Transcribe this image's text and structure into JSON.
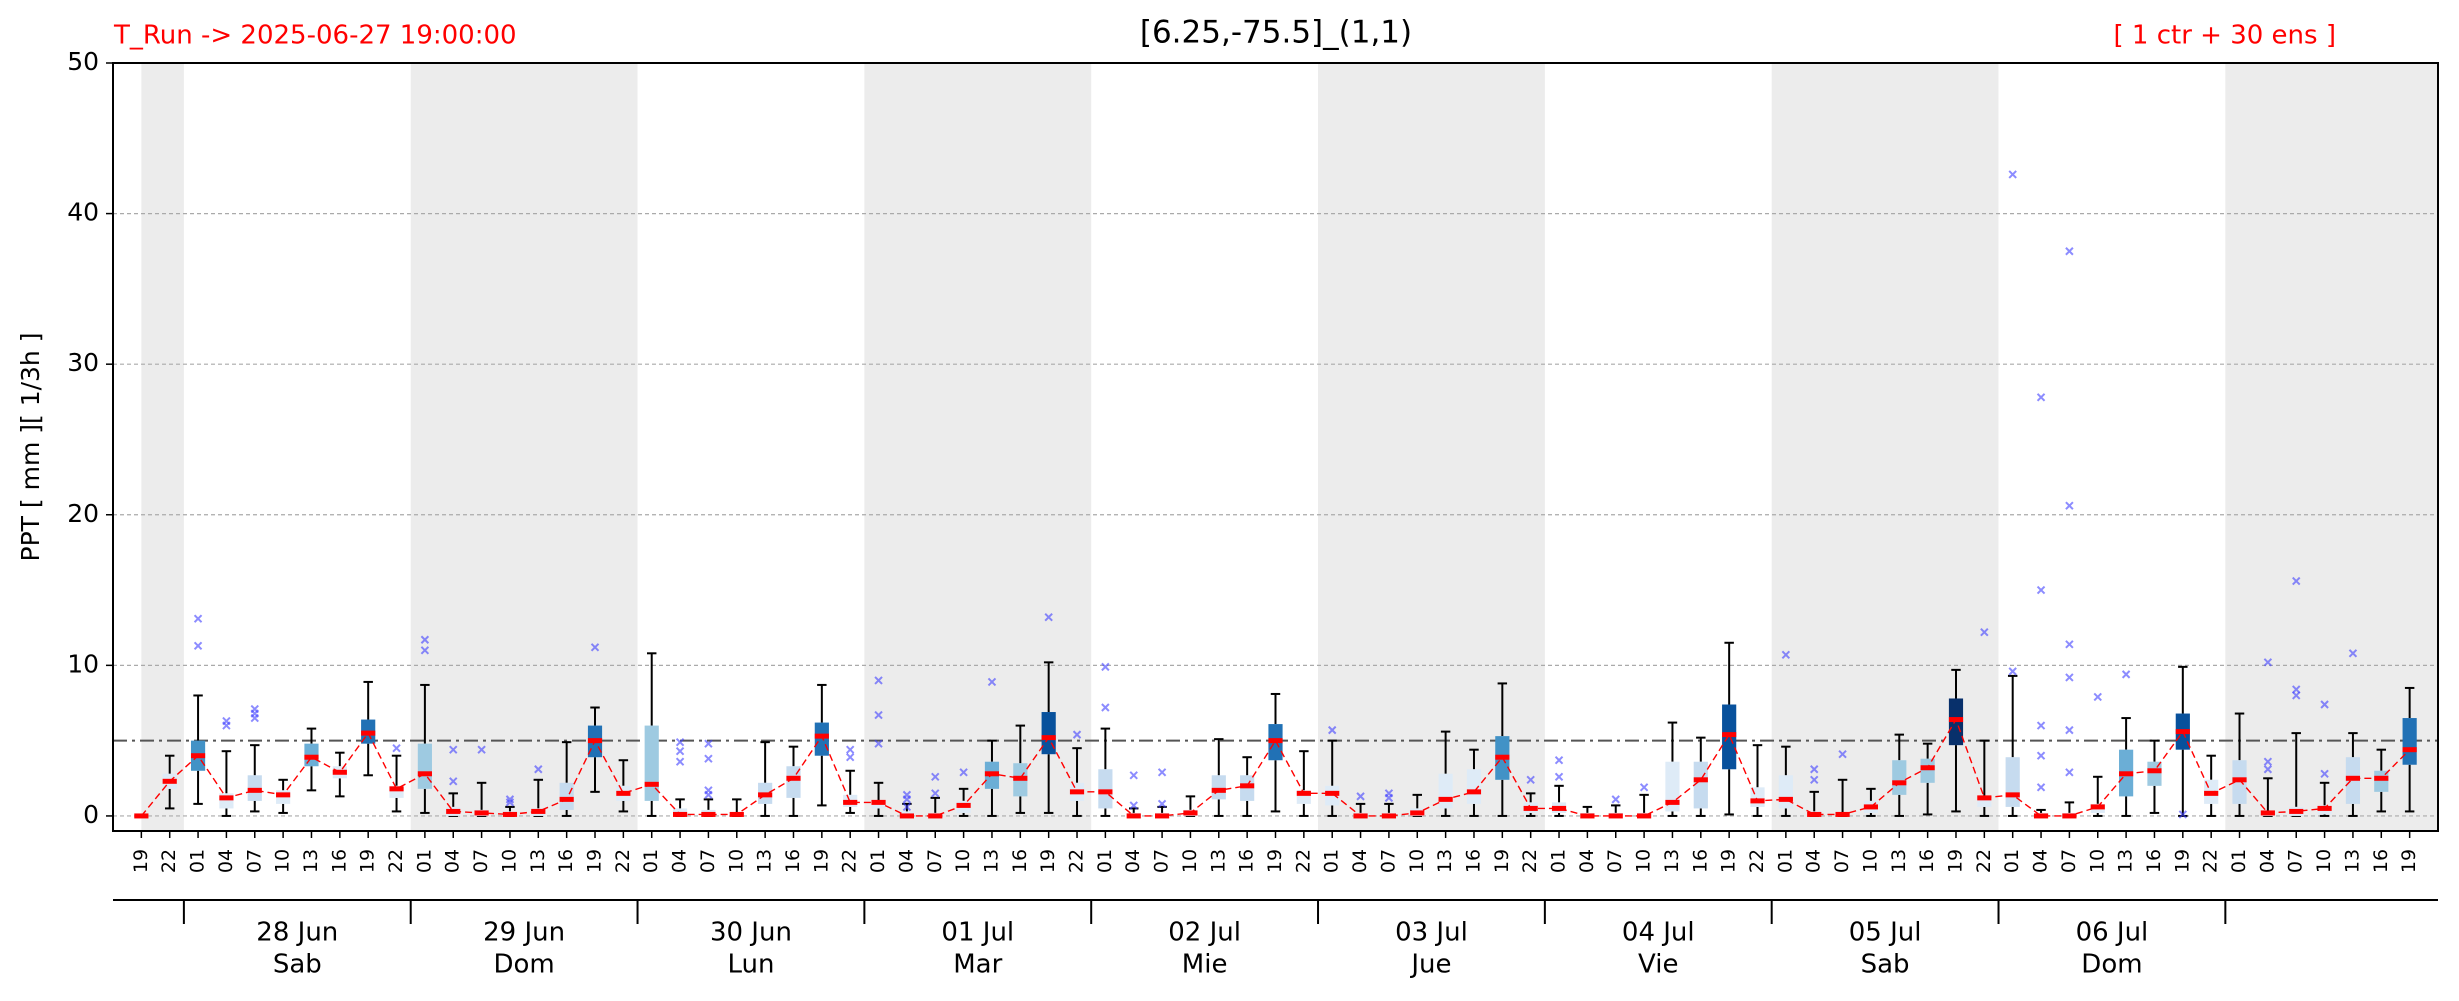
{
  "chart_data": {
    "type": "box",
    "title": "[6.25,-75.5]_(1,1)",
    "run_label": "T_Run -> 2025-06-27  19:00:00",
    "ensemble_label": "[ 1 ctr + 30 ens ]",
    "ylabel": "PPT  [ mm ][ 1/3h ]",
    "categories": [
      "19",
      "22",
      "01",
      "04",
      "07",
      "10",
      "13",
      "16",
      "19",
      "22",
      "01",
      "04",
      "07",
      "10",
      "13",
      "16",
      "19",
      "22",
      "01",
      "04",
      "07",
      "10",
      "13",
      "16",
      "19",
      "22",
      "01",
      "04",
      "07",
      "10",
      "13",
      "16",
      "19",
      "22",
      "01",
      "04",
      "07",
      "10",
      "13",
      "16",
      "19",
      "22",
      "01",
      "04",
      "07",
      "10",
      "13",
      "16",
      "19",
      "22",
      "01",
      "04",
      "07",
      "10",
      "13",
      "16",
      "19",
      "22",
      "01",
      "04",
      "07",
      "10",
      "13",
      "16",
      "19",
      "22",
      "01",
      "04",
      "07",
      "10",
      "13",
      "16",
      "19",
      "22",
      "01",
      "04",
      "07",
      "10",
      "13",
      "16",
      "19"
    ],
    "day_labels": [
      null,
      "28 Jun",
      "29 Jun",
      "30 Jun",
      "01 Jul",
      "02 Jul",
      "03 Jul",
      "04 Jul",
      "05 Jul",
      "06 Jul",
      null
    ],
    "weekdays": [
      null,
      "Sab",
      "Dom",
      "Lun",
      "Mar",
      "Mie",
      "Jue",
      "Vie",
      "Sab",
      "Dom",
      null
    ],
    "whislo": [
      0,
      0.5,
      0.8,
      0,
      0.3,
      0.2,
      1.7,
      1.3,
      2.7,
      0.3,
      0.2,
      0,
      0,
      0,
      0,
      0,
      1.6,
      0.3,
      0,
      0,
      0,
      0,
      0,
      0,
      0.7,
      0.2,
      0,
      0,
      0,
      0,
      0,
      0.2,
      0.2,
      0,
      0,
      0,
      0,
      0,
      0,
      0,
      0.3,
      0,
      0,
      0,
      0,
      0,
      0,
      0,
      0,
      0,
      0,
      0,
      0,
      0,
      0,
      0,
      0.1,
      0,
      0,
      0,
      0,
      0,
      0,
      0.1,
      0.3,
      0,
      0,
      0,
      0,
      0,
      0,
      0.2,
      0,
      0,
      0,
      0,
      0,
      0,
      0,
      0.3,
      0.3
    ],
    "q1": [
      0,
      1.8,
      3,
      0.5,
      1,
      0.8,
      3.3,
      2.5,
      4.8,
      1.2,
      1.8,
      0,
      0,
      0,
      0,
      0.4,
      3.9,
      1,
      1,
      0,
      0,
      0,
      0.8,
      1.2,
      4,
      0.6,
      0.5,
      0,
      0,
      0.2,
      1.8,
      1.3,
      4.1,
      1,
      0.5,
      0,
      0,
      0,
      1.1,
      1,
      3.7,
      0.8,
      0.7,
      0,
      0,
      0,
      0.5,
      0.8,
      2.4,
      0.2,
      0.2,
      0,
      0,
      0,
      0.3,
      0.5,
      3.1,
      0.6,
      0.5,
      0,
      0,
      0.2,
      1.4,
      2.2,
      4.7,
      0.6,
      0.6,
      0,
      0,
      0.2,
      1.3,
      2,
      4.4,
      0.8,
      0.8,
      0,
      0,
      0.1,
      0.8,
      1.6,
      3.4
    ],
    "med": [
      0,
      2.3,
      4,
      1.2,
      1.7,
      1.4,
      3.9,
      2.9,
      5.5,
      1.8,
      2.8,
      0.3,
      0.2,
      0.1,
      0.3,
      1.1,
      5,
      1.5,
      2.1,
      0.1,
      0.1,
      0.1,
      1.4,
      2.5,
      5.3,
      0.9,
      0.9,
      0,
      0,
      0.7,
      2.8,
      2.5,
      5.2,
      1.6,
      1.6,
      0,
      0,
      0.2,
      1.7,
      2,
      5,
      1.5,
      1.5,
      0,
      0,
      0.2,
      1.1,
      1.6,
      3.9,
      0.5,
      0.5,
      0,
      0,
      0,
      0.9,
      2.4,
      5.4,
      1,
      1.1,
      0.1,
      0.1,
      0.6,
      2.2,
      3.2,
      6.4,
      1.2,
      1.4,
      0,
      0,
      0.6,
      2.8,
      3,
      5.6,
      1.5,
      2.4,
      0.2,
      0.3,
      0.5,
      2.5,
      2.5,
      4.4
    ],
    "q3": [
      0,
      2.8,
      5,
      1.5,
      2.7,
      1.7,
      4.8,
      3.3,
      6.4,
      2,
      4.8,
      0.6,
      0.4,
      0.3,
      0.5,
      2.2,
      6,
      2,
      6,
      0.5,
      0.4,
      0.2,
      2.2,
      3.3,
      6.2,
      1.4,
      1,
      0.3,
      0.2,
      1,
      3.6,
      3.5,
      6.9,
      2.2,
      3.1,
      0.2,
      0.2,
      0.4,
      2.7,
      2.7,
      6.1,
      1.7,
      2,
      0.2,
      0.2,
      0.5,
      2.8,
      3.1,
      5.3,
      0.9,
      0.9,
      0.2,
      0.2,
      0.2,
      3.6,
      3.6,
      7.4,
      1.9,
      2.7,
      0.3,
      0.2,
      1,
      3.7,
      3.8,
      7.8,
      1.3,
      3.9,
      0.2,
      0.2,
      0.8,
      4.4,
      3.6,
      6.8,
      2.4,
      3.7,
      0.3,
      0.6,
      0.7,
      3.9,
      3,
      6.5
    ],
    "whishi": [
      0,
      4,
      8,
      4.3,
      4.7,
      2.4,
      5.8,
      4.2,
      8.9,
      4,
      8.7,
      1.5,
      2.2,
      0.6,
      2.4,
      4.9,
      7.2,
      3.7,
      10.8,
      1.1,
      1.1,
      1.1,
      4.9,
      4.6,
      8.7,
      3,
      2.2,
      0.8,
      1.2,
      1.8,
      5,
      6,
      10.2,
      4.5,
      5.8,
      0.5,
      0.6,
      1.3,
      5.1,
      3.9,
      8.1,
      4.3,
      5,
      0.8,
      0.8,
      1.4,
      5.6,
      4.4,
      8.8,
      1.5,
      2,
      0.6,
      0.7,
      1.4,
      6.2,
      5.2,
      11.5,
      4.7,
      4.6,
      1.6,
      2.4,
      1.8,
      5.4,
      4.8,
      9.7,
      5,
      9.3,
      0.4,
      0.9,
      2.6,
      6.5,
      5,
      9.9,
      4,
      6.8,
      2.5,
      5.5,
      2.2,
      5.5,
      4.4,
      8.5
    ],
    "fliers": [
      [],
      [],
      [
        11.3,
        13.1
      ],
      [
        6,
        6.3
      ],
      [
        6.5,
        6.8,
        7.1
      ],
      [],
      [],
      [],
      [],
      [
        4.5
      ],
      [
        11,
        11.7
      ],
      [
        2.3,
        4.4
      ],
      [
        4.4
      ],
      [
        0.9,
        1.1
      ],
      [
        3.1
      ],
      [],
      [
        11.2
      ],
      [],
      [],
      [
        3.6,
        4.3,
        4.9
      ],
      [
        1.4,
        1.7,
        3.8,
        4.8
      ],
      [],
      [],
      [],
      [],
      [
        3.9,
        4.4
      ],
      [
        4.8,
        6.7,
        9
      ],
      [
        0.6,
        1.1,
        1.4
      ],
      [
        1.5,
        2.6
      ],
      [
        2.9
      ],
      [
        8.9
      ],
      [],
      [
        13.2
      ],
      [
        5.4
      ],
      [
        7.2,
        9.9
      ],
      [
        0.7,
        2.7
      ],
      [
        0.8,
        2.9
      ],
      [],
      [],
      [],
      [],
      [],
      [
        5.7
      ],
      [
        1.3
      ],
      [
        1.2,
        1.5
      ],
      [],
      [],
      [],
      [],
      [
        2.4
      ],
      [
        2.6,
        3.7
      ],
      [],
      [
        1.1
      ],
      [
        1.9
      ],
      [],
      [],
      [],
      [],
      [
        10.7
      ],
      [
        2.4,
        3.1
      ],
      [
        4.1
      ],
      [],
      [],
      [],
      [],
      [
        12.2
      ],
      [
        9.6,
        42.6
      ],
      [
        1.9,
        4,
        6,
        15,
        27.8
      ],
      [
        2.9,
        5.7,
        9.2,
        11.4,
        20.6,
        37.5
      ],
      [
        7.9
      ],
      [
        9.4
      ],
      [],
      [
        0.1
      ],
      [],
      [],
      [
        3.1,
        3.6,
        10.2
      ],
      [
        8,
        8.4,
        15.6
      ],
      [
        2.8,
        7.4
      ],
      [
        10.8
      ],
      [],
      []
    ],
    "box_colors": [
      "#deebf7",
      "#deebf7",
      "#4292c6",
      "#deebf7",
      "#c6dbef",
      "#deebf7",
      "#6baed6",
      "#deebf7",
      "#2171b5",
      "#deebf7",
      "#9ecae1",
      "#deebf7",
      "#deebf7",
      "#deebf7",
      "#deebf7",
      "#c6dbef",
      "#2171b5",
      "#deebf7",
      "#9ecae1",
      "#deebf7",
      "#deebf7",
      "#deebf7",
      "#c6dbef",
      "#c6dbef",
      "#2171b5",
      "#deebf7",
      "#deebf7",
      "#deebf7",
      "#deebf7",
      "#deebf7",
      "#6baed6",
      "#9ecae1",
      "#08519c",
      "#deebf7",
      "#c6dbef",
      "#deebf7",
      "#deebf7",
      "#deebf7",
      "#c6dbef",
      "#c6dbef",
      "#2171b5",
      "#deebf7",
      "#deebf7",
      "#deebf7",
      "#deebf7",
      "#deebf7",
      "#deebf7",
      "#deebf7",
      "#4292c6",
      "#deebf7",
      "#deebf7",
      "#deebf7",
      "#deebf7",
      "#deebf7",
      "#deebf7",
      "#c6dbef",
      "#08519c",
      "#deebf7",
      "#deebf7",
      "#deebf7",
      "#deebf7",
      "#deebf7",
      "#9ecae1",
      "#9ecae1",
      "#08306b",
      "#deebf7",
      "#c6dbef",
      "#deebf7",
      "#deebf7",
      "#deebf7",
      "#6baed6",
      "#9ecae1",
      "#08519c",
      "#deebf7",
      "#c6dbef",
      "#deebf7",
      "#deebf7",
      "#deebf7",
      "#c6dbef",
      "#9ecae1",
      "#2171b5"
    ],
    "median_color": "#ff0000",
    "flier_color": "#4040ff",
    "shade_color": "#ececec",
    "threshold": 5,
    "xlim": [
      -1,
      81
    ],
    "ylim": [
      -1,
      50
    ],
    "yticks": [
      0,
      10,
      20,
      30,
      40,
      50
    ],
    "grid": true
  }
}
